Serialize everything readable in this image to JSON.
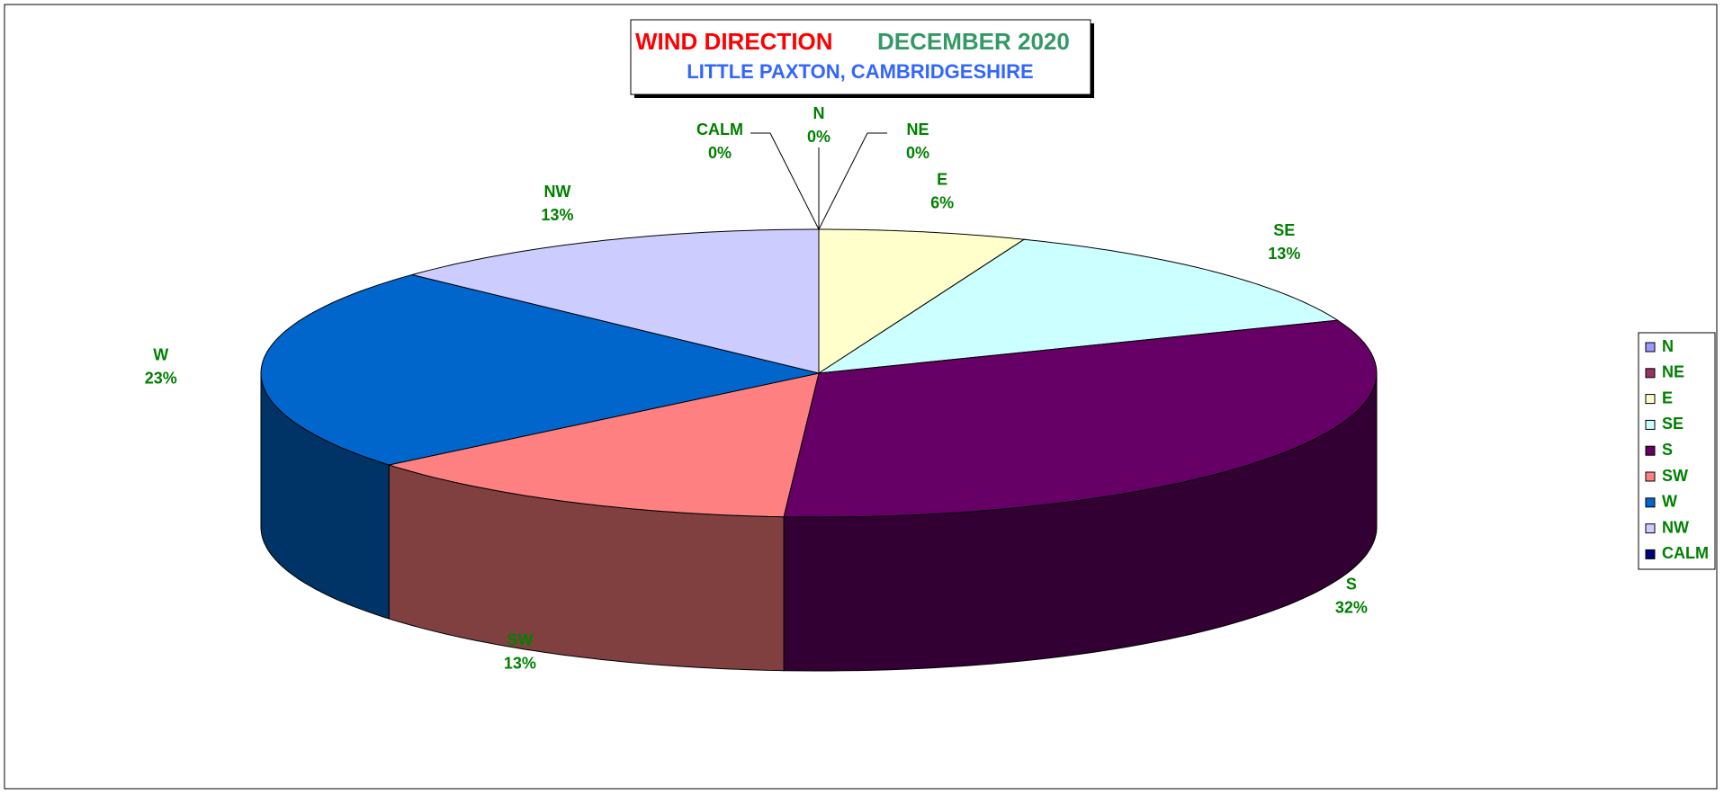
{
  "chart_data": {
    "type": "pie3d",
    "title": "WIND DIRECTION",
    "title_period": "DECEMBER 2020",
    "subtitle": "LITTLE PAXTON, CAMBRIDGESHIRE",
    "categories": [
      "N",
      "NE",
      "E",
      "SE",
      "S",
      "SW",
      "W",
      "NW",
      "CALM"
    ],
    "values": [
      0,
      0,
      6,
      13,
      32,
      13,
      23,
      13,
      0
    ],
    "value_labels": [
      "0%",
      "0%",
      "6%",
      "13%",
      "32%",
      "13%",
      "23%",
      "13%",
      "0%"
    ],
    "colors": [
      "#9999ff",
      "#993366",
      "#ffffcc",
      "#ccffff",
      "#660066",
      "#ff8080",
      "#0066cc",
      "#ccccff",
      "#000080"
    ],
    "legend": "right"
  }
}
